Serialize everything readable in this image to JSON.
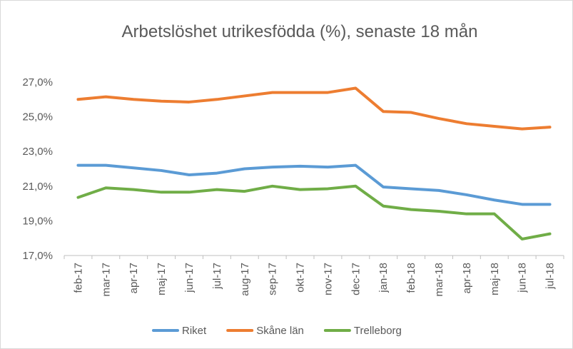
{
  "chart_data": {
    "type": "line",
    "title": "Arbetslöshet utrikesfödda (%), senaste 18 mån",
    "categories": [
      "feb-17",
      "mar-17",
      "apr-17",
      "maj-17",
      "jun-17",
      "jul-17",
      "aug-17",
      "sep-17",
      "okt-17",
      "nov-17",
      "dec-17",
      "jan-18",
      "feb-18",
      "mar-18",
      "apr-18",
      "maj-18",
      "jun-18",
      "jul-18"
    ],
    "series": [
      {
        "name": "Riket",
        "color": "#5b9bd5",
        "values": [
          22.2,
          22.2,
          22.05,
          21.9,
          21.65,
          21.75,
          22.0,
          22.1,
          22.15,
          22.1,
          22.2,
          20.95,
          20.85,
          20.75,
          20.5,
          20.2,
          19.95,
          19.95
        ]
      },
      {
        "name": "Skåne län",
        "color": "#ed7d31",
        "values": [
          26.0,
          26.15,
          26.0,
          25.9,
          25.85,
          26.0,
          26.2,
          26.4,
          26.4,
          26.4,
          26.65,
          25.3,
          25.25,
          24.9,
          24.6,
          24.45,
          24.3,
          24.4
        ]
      },
      {
        "name": "Trelleborg",
        "color": "#70ad47",
        "values": [
          20.35,
          20.9,
          20.8,
          20.65,
          20.65,
          20.8,
          20.7,
          21.0,
          20.8,
          20.85,
          21.0,
          19.85,
          19.65,
          19.55,
          19.4,
          19.4,
          17.95,
          18.25
        ]
      }
    ],
    "ylim": [
      17,
      27
    ],
    "yticks": [
      {
        "value": 17,
        "label": "17,0%"
      },
      {
        "value": 19,
        "label": "19,0%"
      },
      {
        "value": 21,
        "label": "21,0%"
      },
      {
        "value": 23,
        "label": "23,0%"
      },
      {
        "value": 25,
        "label": "25,0%"
      },
      {
        "value": 27,
        "label": "27,0%"
      }
    ],
    "grid": false,
    "legend": "bottom"
  }
}
